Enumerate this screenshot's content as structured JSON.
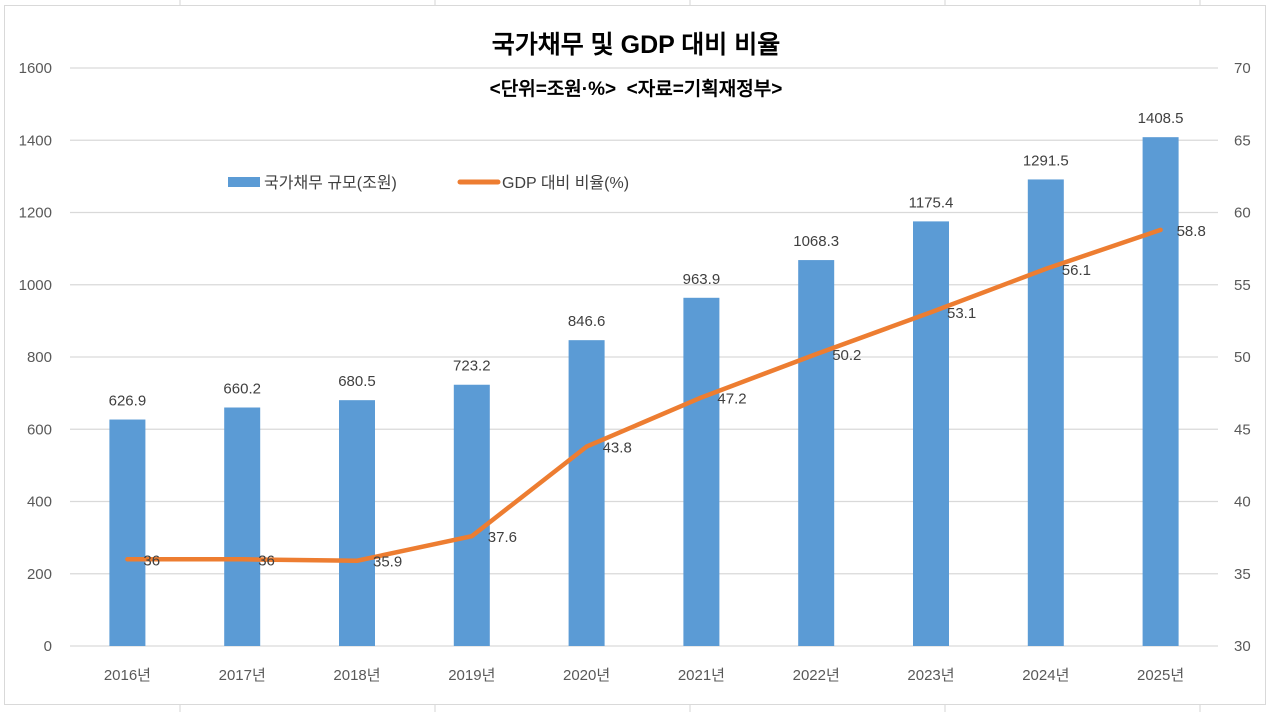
{
  "chart_data": {
    "type": "bar+line",
    "title": "국가채무 및 GDP 대비 비율",
    "subtitle": "<단위=조원·%>  <자료=기획재정부>",
    "categories": [
      "2016년",
      "2017년",
      "2018년",
      "2019년",
      "2020년",
      "2021년",
      "2022년",
      "2023년",
      "2024년",
      "2025년"
    ],
    "series": [
      {
        "name": "국가채무 규모(조원)",
        "type": "bar",
        "axis": "left",
        "color": "#5b9bd5",
        "values": [
          626.9,
          660.2,
          680.5,
          723.2,
          846.6,
          963.9,
          1068.3,
          1175.4,
          1291.5,
          1408.5
        ],
        "labels": [
          "626.9",
          "660.2",
          "680.5",
          "723.2",
          "846.6",
          "963.9",
          "1068.3",
          "1175.4",
          "1291.5",
          "1408.5"
        ]
      },
      {
        "name": "GDP 대비 비율(%)",
        "type": "line",
        "axis": "right",
        "color": "#ed7d31",
        "values": [
          36,
          36,
          35.9,
          37.6,
          43.8,
          47.2,
          50.2,
          53.1,
          56.1,
          58.8
        ],
        "labels": [
          "36",
          "36",
          "35.9",
          "37.6",
          "43.8",
          "47.2",
          "50.2",
          "53.1",
          "56.1",
          "58.8"
        ]
      }
    ],
    "y_left": {
      "range": [
        0,
        1600
      ],
      "ticks": [
        "0",
        "200",
        "400",
        "600",
        "800",
        "1000",
        "1200",
        "1400",
        "1600"
      ]
    },
    "y_right": {
      "range": [
        30,
        70
      ],
      "ticks": [
        "30",
        "35",
        "40",
        "45",
        "50",
        "55",
        "60",
        "65",
        "70"
      ]
    },
    "grid": true,
    "legend": "top-left inside"
  }
}
